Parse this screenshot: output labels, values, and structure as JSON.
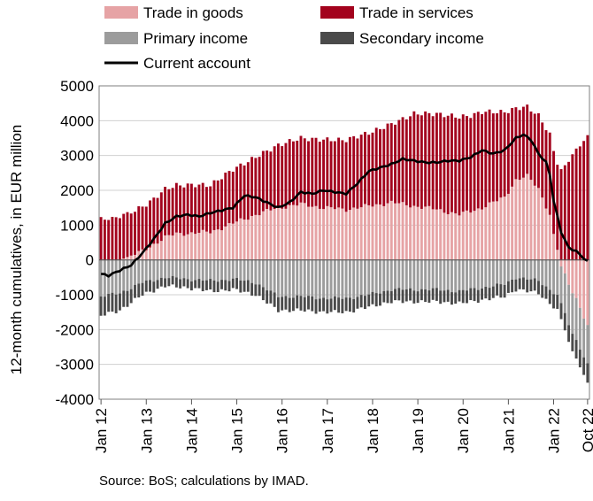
{
  "chart_data": {
    "type": "bar",
    "stacked": true,
    "ylabel": "12-month cumulatives, in EUR million",
    "ylim": [
      -4000,
      5000
    ],
    "yticks": [
      -4000,
      -3000,
      -2000,
      -1000,
      0,
      1000,
      2000,
      3000,
      4000,
      5000
    ],
    "grid": true,
    "legend": "top",
    "source": "Source: BoS; calculations by IMAD.",
    "x_start": "2012-01",
    "x_end": "2022-10",
    "x_tick_labels": [
      "Jan 12",
      "Jan 13",
      "Jan 14",
      "Jan 15",
      "Jan 16",
      "Jan 17",
      "Jan 18",
      "Jan 19",
      "Jan 20",
      "Jan 21",
      "Jan 22",
      "Oct 22"
    ],
    "series": [
      {
        "name": "Trade in goods",
        "color": "#e6a3a5",
        "anchors": [
          [
            "2012-01",
            0
          ],
          [
            "2012-06",
            0
          ],
          [
            "2012-12",
            250
          ],
          [
            "2013-06",
            650
          ],
          [
            "2013-09",
            750
          ],
          [
            "2014-06",
            800
          ],
          [
            "2014-12",
            1050
          ],
          [
            "2015-06",
            1300
          ],
          [
            "2015-12",
            1500
          ],
          [
            "2016-06",
            1600
          ],
          [
            "2016-12",
            1500
          ],
          [
            "2017-06",
            1450
          ],
          [
            "2017-12",
            1550
          ],
          [
            "2018-06",
            1650
          ],
          [
            "2018-12",
            1550
          ],
          [
            "2019-06",
            1450
          ],
          [
            "2019-12",
            1300
          ],
          [
            "2020-06",
            1500
          ],
          [
            "2020-12",
            1800
          ],
          [
            "2021-03",
            2300
          ],
          [
            "2021-06",
            2400
          ],
          [
            "2021-09",
            2050
          ],
          [
            "2021-12",
            1300
          ],
          [
            "2022-01",
            700
          ],
          [
            "2022-02",
            300
          ],
          [
            "2022-03",
            -200
          ],
          [
            "2022-05",
            -700
          ],
          [
            "2022-07",
            -1100
          ],
          [
            "2022-10",
            -1900
          ]
        ]
      },
      {
        "name": "Trade in services",
        "color": "#a3021d",
        "anchors": [
          [
            "2012-01",
            1200
          ],
          [
            "2012-06",
            1220
          ],
          [
            "2012-12",
            1280
          ],
          [
            "2013-03",
            1300
          ],
          [
            "2013-06",
            1380
          ],
          [
            "2013-09",
            1400
          ],
          [
            "2014-06",
            1350
          ],
          [
            "2014-12",
            1550
          ],
          [
            "2015-06",
            1650
          ],
          [
            "2015-12",
            1800
          ],
          [
            "2016-06",
            1900
          ],
          [
            "2016-12",
            1950
          ],
          [
            "2017-06",
            2000
          ],
          [
            "2017-12",
            2100
          ],
          [
            "2018-06",
            2250
          ],
          [
            "2018-12",
            2650
          ],
          [
            "2019-06",
            2750
          ],
          [
            "2019-12",
            2800
          ],
          [
            "2020-03",
            2750
          ],
          [
            "2020-06",
            2750
          ],
          [
            "2020-12",
            2450
          ],
          [
            "2021-03",
            2050
          ],
          [
            "2021-06",
            2000
          ],
          [
            "2021-09",
            2100
          ],
          [
            "2021-12",
            2300
          ],
          [
            "2022-03",
            2600
          ],
          [
            "2022-06",
            3000
          ],
          [
            "2022-10",
            3550
          ]
        ]
      },
      {
        "name": "Primary income",
        "color": "#9c9c9c",
        "anchors": [
          [
            "2012-01",
            -1050
          ],
          [
            "2012-06",
            -950
          ],
          [
            "2012-12",
            -650
          ],
          [
            "2013-06",
            -500
          ],
          [
            "2013-12",
            -550
          ],
          [
            "2014-06",
            -600
          ],
          [
            "2014-12",
            -550
          ],
          [
            "2015-06",
            -650
          ],
          [
            "2015-12",
            -1050
          ],
          [
            "2016-06",
            -1050
          ],
          [
            "2016-12",
            -1100
          ],
          [
            "2017-06",
            -1100
          ],
          [
            "2017-12",
            -1000
          ],
          [
            "2018-06",
            -850
          ],
          [
            "2018-12",
            -850
          ],
          [
            "2019-06",
            -850
          ],
          [
            "2019-12",
            -900
          ],
          [
            "2020-06",
            -800
          ],
          [
            "2020-12",
            -700
          ],
          [
            "2021-03",
            -500
          ],
          [
            "2021-06",
            -550
          ],
          [
            "2021-09",
            -600
          ],
          [
            "2021-12",
            -850
          ],
          [
            "2022-03",
            -1100
          ],
          [
            "2022-06",
            -1200
          ],
          [
            "2022-10",
            -1100
          ]
        ]
      },
      {
        "name": "Secondary income",
        "color": "#4a4a4a",
        "anchors": [
          [
            "2012-01",
            -550
          ],
          [
            "2012-06",
            -500
          ],
          [
            "2012-12",
            -350
          ],
          [
            "2013-06",
            -250
          ],
          [
            "2013-12",
            -250
          ],
          [
            "2014-06",
            -300
          ],
          [
            "2014-12",
            -300
          ],
          [
            "2015-06",
            -350
          ],
          [
            "2015-12",
            -400
          ],
          [
            "2016-06",
            -400
          ],
          [
            "2016-12",
            -400
          ],
          [
            "2017-06",
            -400
          ],
          [
            "2017-12",
            -350
          ],
          [
            "2018-06",
            -350
          ],
          [
            "2018-12",
            -350
          ],
          [
            "2019-06",
            -350
          ],
          [
            "2019-12",
            -350
          ],
          [
            "2020-06",
            -350
          ],
          [
            "2020-12",
            -350
          ],
          [
            "2021-03",
            -350
          ],
          [
            "2021-06",
            -350
          ],
          [
            "2021-09",
            -350
          ],
          [
            "2021-12",
            -400
          ],
          [
            "2022-03",
            -450
          ],
          [
            "2022-06",
            -500
          ],
          [
            "2022-10",
            -550
          ]
        ]
      },
      {
        "name": "Current account",
        "color": "#000000",
        "type": "line",
        "anchors": [
          [
            "2012-01",
            -400
          ],
          [
            "2012-03",
            -450
          ],
          [
            "2012-06",
            -300
          ],
          [
            "2012-09",
            -150
          ],
          [
            "2012-12",
            200
          ],
          [
            "2013-03",
            600
          ],
          [
            "2013-06",
            1050
          ],
          [
            "2013-09",
            1250
          ],
          [
            "2013-12",
            1300
          ],
          [
            "2014-03",
            1250
          ],
          [
            "2014-06",
            1350
          ],
          [
            "2014-12",
            1500
          ],
          [
            "2015-03",
            1850
          ],
          [
            "2015-06",
            1800
          ],
          [
            "2015-09",
            1650
          ],
          [
            "2015-12",
            1500
          ],
          [
            "2016-03",
            1650
          ],
          [
            "2016-06",
            1950
          ],
          [
            "2016-09",
            1900
          ],
          [
            "2016-12",
            2000
          ],
          [
            "2017-03",
            1950
          ],
          [
            "2017-06",
            1900
          ],
          [
            "2017-09",
            2200
          ],
          [
            "2017-12",
            2550
          ],
          [
            "2018-03",
            2650
          ],
          [
            "2018-06",
            2750
          ],
          [
            "2018-09",
            2900
          ],
          [
            "2018-12",
            2850
          ],
          [
            "2019-03",
            2800
          ],
          [
            "2019-06",
            2800
          ],
          [
            "2019-09",
            2850
          ],
          [
            "2019-12",
            2850
          ],
          [
            "2020-03",
            2950
          ],
          [
            "2020-06",
            3150
          ],
          [
            "2020-09",
            3050
          ],
          [
            "2020-12",
            3150
          ],
          [
            "2021-03",
            3500
          ],
          [
            "2021-05",
            3600
          ],
          [
            "2021-07",
            3450
          ],
          [
            "2021-09",
            3050
          ],
          [
            "2021-11",
            2800
          ],
          [
            "2021-12",
            2450
          ],
          [
            "2022-01",
            1700
          ],
          [
            "2022-03",
            800
          ],
          [
            "2022-05",
            350
          ],
          [
            "2022-07",
            250
          ],
          [
            "2022-09",
            50
          ],
          [
            "2022-10",
            -50
          ]
        ]
      }
    ]
  }
}
